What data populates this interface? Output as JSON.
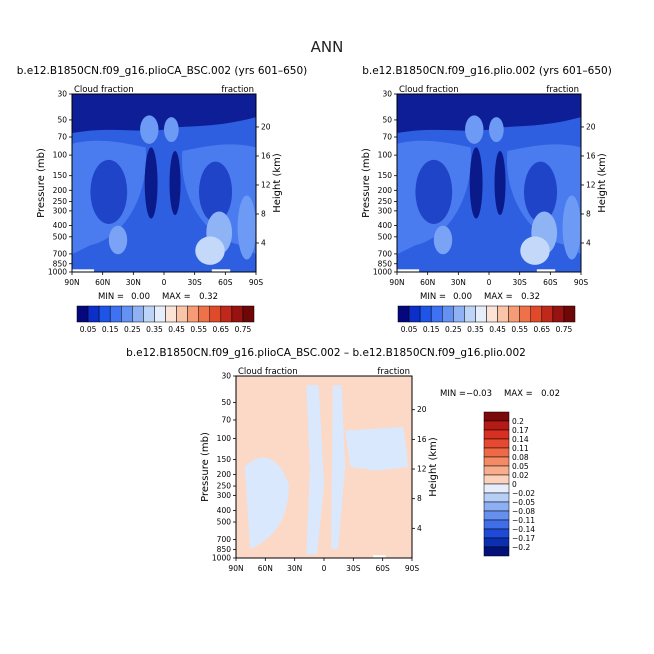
{
  "figure_title": "ANN",
  "chart_data": [
    {
      "type": "heatmap",
      "title": "b.e12.B1850CN.f09_g16.plioCA_BSC.002 (yrs 601–650)",
      "left_label": "Cloud fraction",
      "right_label": "fraction",
      "ylabel": "Pressure (mb)",
      "y2label": "Height (km)",
      "x_ticks": [
        "90N",
        "60N",
        "30N",
        "0",
        "30S",
        "60S",
        "90S"
      ],
      "y_ticks": [
        "30",
        "50",
        "70",
        "100",
        "150",
        "200",
        "250",
        "300",
        "400",
        "500",
        "700",
        "850",
        "1000"
      ],
      "y2_ticks": [
        "20",
        "16",
        "12",
        "8",
        "4"
      ],
      "min_label": "MIN =",
      "min_value": "0.00",
      "max_label": "MAX =",
      "max_value": "0.32",
      "colorbar_labels": [
        "0.05",
        "0.15",
        "0.25",
        "0.35",
        "0.45",
        "0.55",
        "0.65",
        "0.75"
      ],
      "colorbar_colors": [
        "#05087d",
        "#0b2fc8",
        "#1e55e8",
        "#3f72f2",
        "#6491f2",
        "#90b2f5",
        "#bcd4f8",
        "#e6eefc",
        "#fbe3d6",
        "#fac4a8",
        "#f59c76",
        "#ee7149",
        "#e04a2b",
        "#c0281b",
        "#961312",
        "#6e0706"
      ]
    },
    {
      "type": "heatmap",
      "title": "b.e12.B1850CN.f09_g16.plio.002 (yrs 601–650)",
      "left_label": "Cloud fraction",
      "right_label": "fraction",
      "ylabel": "Pressure (mb)",
      "y2label": "Height (km)",
      "x_ticks": [
        "90N",
        "60N",
        "30N",
        "0",
        "30S",
        "60S",
        "90S"
      ],
      "y_ticks": [
        "30",
        "50",
        "70",
        "100",
        "150",
        "200",
        "250",
        "300",
        "400",
        "500",
        "700",
        "850",
        "1000"
      ],
      "y2_ticks": [
        "20",
        "16",
        "12",
        "8",
        "4"
      ],
      "min_label": "MIN =",
      "min_value": "0.00",
      "max_label": "MAX =",
      "max_value": "0.32",
      "colorbar_labels": [
        "0.05",
        "0.15",
        "0.25",
        "0.35",
        "0.45",
        "0.55",
        "0.65",
        "0.75"
      ],
      "colorbar_colors": [
        "#05087d",
        "#0b2fc8",
        "#1e55e8",
        "#3f72f2",
        "#6491f2",
        "#90b2f5",
        "#bcd4f8",
        "#e6eefc",
        "#fbe3d6",
        "#fac4a8",
        "#f59c76",
        "#ee7149",
        "#e04a2b",
        "#c0281b",
        "#961312",
        "#6e0706"
      ]
    },
    {
      "type": "heatmap",
      "title": "b.e12.B1850CN.f09_g16.plioCA_BSC.002 – b.e12.B1850CN.f09_g16.plio.002",
      "left_label": "Cloud fraction",
      "right_label": "fraction",
      "ylabel": "Pressure (mb)",
      "y2label": "Height (km)",
      "x_ticks": [
        "90N",
        "60N",
        "30N",
        "0",
        "30S",
        "60S",
        "90S"
      ],
      "y_ticks": [
        "30",
        "50",
        "70",
        "100",
        "150",
        "200",
        "250",
        "300",
        "400",
        "500",
        "700",
        "850",
        "1000"
      ],
      "y2_ticks": [
        "20",
        "16",
        "12",
        "8",
        "4"
      ],
      "min_label": "MIN =",
      "min_value": "−0.03",
      "max_label": "MAX =",
      "max_value": "0.02",
      "colorbar_labels": [
        "0.2",
        "0.17",
        "0.14",
        "0.11",
        "0.08",
        "0.05",
        "0.02",
        "0",
        "−0.02",
        "−0.05",
        "−0.08",
        "−0.11",
        "−0.14",
        "−0.17",
        "−0.2"
      ],
      "colorbar_colors": [
        "#7b0a0a",
        "#b51a14",
        "#d72f22",
        "#e6492f",
        "#ee6a47",
        "#f48b66",
        "#f8ad8c",
        "#fcd2bc",
        "#e6eefc",
        "#b6cff6",
        "#8cb0f3",
        "#6690f0",
        "#3f6ee8",
        "#1d4bd8",
        "#0b2fb0",
        "#04107a"
      ]
    }
  ]
}
